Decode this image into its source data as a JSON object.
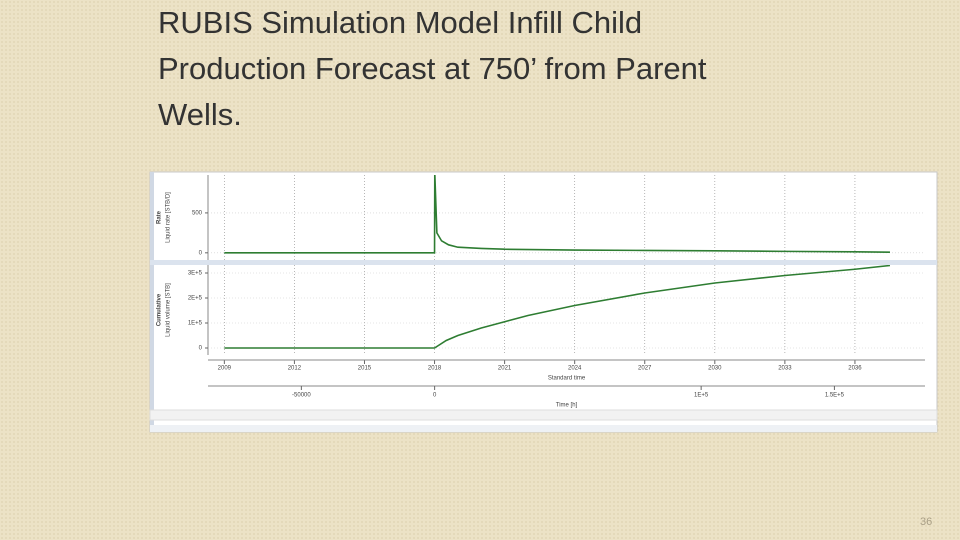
{
  "title": [
    "RUBIS Simulation Model Infill Child",
    "Production Forecast at 750’ from Parent",
    "Wells."
  ],
  "page_number": "36",
  "chart_data": [
    {
      "type": "line",
      "panel_label": "Rate",
      "ylabel": "Liquid rate [STB/D]",
      "xlim": [
        2008.3,
        2039
      ],
      "ylim": [
        -90,
        975
      ],
      "yticks": [
        0,
        500
      ],
      "xticks": [
        2009,
        2012,
        2015,
        2018,
        2021,
        2024,
        2027,
        2030,
        2033,
        2036
      ],
      "grid": true,
      "x": [
        2009,
        2018,
        2018.01,
        2018.1,
        2018.3,
        2018.6,
        2019,
        2020,
        2021,
        2024,
        2027,
        2030,
        2033,
        2036,
        2037.5
      ],
      "series": [
        {
          "color": "#2e7d32",
          "values": [
            0,
            0,
            1000,
            250,
            150,
            100,
            70,
            55,
            45,
            35,
            30,
            25,
            18,
            12,
            8
          ]
        }
      ]
    },
    {
      "type": "line",
      "panel_label": "Cumulative",
      "ylabel": "Liquid volume [STB]",
      "xlim": [
        2008.3,
        2039
      ],
      "ylim": [
        -28000,
        332000
      ],
      "yticks": [
        0,
        {
          "value": 100000,
          "label": "1E+5"
        },
        {
          "value": 200000,
          "label": "2E+5"
        },
        {
          "value": 300000,
          "label": "3E+5"
        }
      ],
      "xticks": [
        2009,
        2012,
        2015,
        2018,
        2021,
        2024,
        2027,
        2030,
        2033,
        2036
      ],
      "xlabel": "Standard time",
      "x2lim": [
        -85030,
        183990
      ],
      "x2ticks": [
        {
          "value": -50000,
          "label": "-50000"
        },
        0,
        {
          "value": 100000,
          "label": "1E+5"
        },
        {
          "value": 150000,
          "label": "1.5E+5"
        }
      ],
      "x2label": "Time [h]",
      "grid": true,
      "x": [
        2009,
        2018,
        2018.5,
        2019,
        2020,
        2021,
        2022,
        2024,
        2027,
        2030,
        2033,
        2036,
        2037.5
      ],
      "series": [
        {
          "color": "#2e7d32",
          "values": [
            0,
            0,
            30000,
            50000,
            80000,
            105000,
            130000,
            170000,
            220000,
            260000,
            290000,
            315000,
            330000
          ]
        }
      ]
    }
  ]
}
